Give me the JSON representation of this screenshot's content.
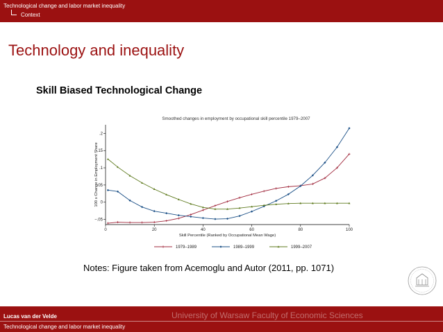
{
  "header": {
    "section": "Technological change and labor market inequality",
    "subsection": "Context"
  },
  "slide": {
    "title": "Technology and inequality",
    "subtitle": "Skill Biased Technological Change",
    "notes": "Notes: Figure taken from Acemoglu and Autor (2011, pp. 1071)"
  },
  "footer": {
    "author": "Lucas van der Velde",
    "institution": "University of Warsaw  Faculty of Economic Sciences",
    "short_title": "Technological change and labor market inequality"
  },
  "colors": {
    "bar": "#9b1111",
    "series_1979": "#a0283c",
    "series_1989": "#1a4f86",
    "series_1999": "#5e7a1e"
  },
  "chart_data": {
    "type": "line",
    "title": "Smoothed changes in employment by occupational skill percentile 1979–2007",
    "xlabel": "Skill Percentile (Ranked by Occupational Mean Wage)",
    "ylabel": "100 x Change in Employment Share",
    "xlim": [
      0,
      100
    ],
    "ylim": [
      -0.065,
      0.225
    ],
    "x_ticks": [
      0,
      20,
      40,
      60,
      80,
      100
    ],
    "y_ticks": [
      -0.05,
      0,
      0.05,
      0.1,
      0.15,
      0.2
    ],
    "x_tick_labels": [
      "0",
      "20",
      "40",
      "60",
      "80",
      "100"
    ],
    "y_tick_labels": [
      "−.05",
      "0",
      ".05",
      ".1",
      ".15",
      ".2"
    ],
    "grid": false,
    "legend_position": "bottom",
    "x": [
      1,
      5,
      10,
      15,
      20,
      25,
      30,
      35,
      40,
      45,
      50,
      55,
      60,
      65,
      70,
      75,
      80,
      85,
      90,
      95,
      100
    ],
    "series": [
      {
        "name": "1979–1989",
        "marker": "plus",
        "values": [
          -0.061,
          -0.058,
          -0.059,
          -0.059,
          -0.058,
          -0.054,
          -0.047,
          -0.036,
          -0.023,
          -0.01,
          0.002,
          0.013,
          0.023,
          0.032,
          0.04,
          0.045,
          0.048,
          0.053,
          0.07,
          0.1,
          0.14
        ]
      },
      {
        "name": "1989–1999",
        "marker": "diamond",
        "values": [
          0.035,
          0.031,
          0.005,
          -0.014,
          -0.026,
          -0.032,
          -0.038,
          -0.042,
          -0.046,
          -0.049,
          -0.048,
          -0.04,
          -0.027,
          -0.012,
          0.004,
          0.023,
          0.047,
          0.078,
          0.115,
          0.16,
          0.215
        ]
      },
      {
        "name": "1999–2007",
        "marker": "triangle",
        "values": [
          0.125,
          0.102,
          0.077,
          0.056,
          0.038,
          0.022,
          0.008,
          -0.005,
          -0.015,
          -0.02,
          -0.02,
          -0.017,
          -0.013,
          -0.009,
          -0.006,
          -0.004,
          -0.003,
          -0.003,
          -0.003,
          -0.003,
          -0.003
        ]
      }
    ]
  }
}
